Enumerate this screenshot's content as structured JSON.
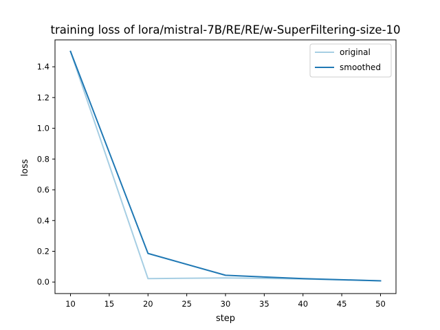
{
  "chart_data": {
    "type": "line",
    "title": "training loss of lora/mistral-7B/RE/RE/w-SuperFiltering-size-10",
    "xlabel": "step",
    "ylabel": "loss",
    "xlim": [
      8,
      52
    ],
    "ylim": [
      -0.075,
      1.575
    ],
    "xticks": [
      10,
      15,
      20,
      25,
      30,
      35,
      40,
      45,
      50
    ],
    "yticks": [
      0.0,
      0.2,
      0.4,
      0.6,
      0.8,
      1.0,
      1.2,
      1.4
    ],
    "ytick_labels": [
      "0.0",
      "0.2",
      "0.4",
      "0.6",
      "0.8",
      "1.0",
      "1.2",
      "1.4"
    ],
    "grid": false,
    "legend_position": "top-right",
    "series": [
      {
        "name": "original",
        "color": "#a6cee3",
        "x": [
          10,
          20,
          30,
          40,
          50
        ],
        "y": [
          1.5,
          0.022,
          0.027,
          0.02,
          0.008
        ]
      },
      {
        "name": "smoothed",
        "color": "#1f78b4",
        "x": [
          10,
          20,
          30,
          40,
          50
        ],
        "y": [
          1.5,
          0.186,
          0.044,
          0.022,
          0.008
        ]
      }
    ]
  }
}
